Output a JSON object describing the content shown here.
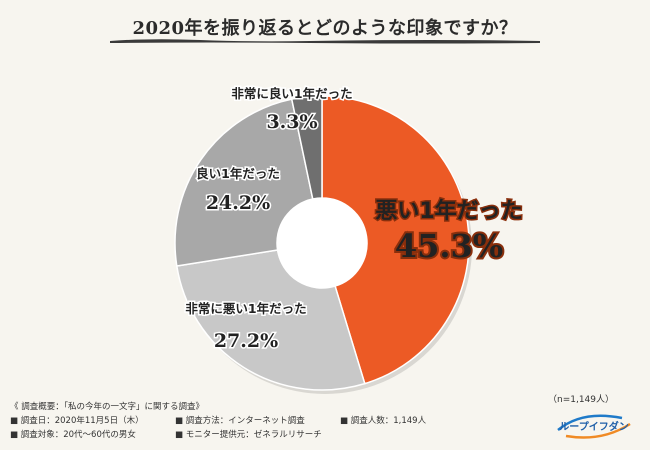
{
  "title": "2020年を振り返るとどのような印象ですか？",
  "chart_data": {
    "type": "pie",
    "donut": true,
    "slices": [
      {
        "label": "悪い1年だった",
        "value": 45.3,
        "value_label": "45.3%",
        "color": "#ec5a25"
      },
      {
        "label": "非常に悪い1年だった",
        "value": 27.2,
        "value_label": "27.2%",
        "color": "#c8c8c8"
      },
      {
        "label": "良い1年だった",
        "value": 24.2,
        "value_label": "24.2%",
        "color": "#a8a8a8"
      },
      {
        "label": "非常に良い1年だった",
        "value": 3.3,
        "value_label": "3.3%",
        "color": "#6f6f6f"
      }
    ]
  },
  "survey": {
    "heading": "《 調査概要：「私の今年の一文字」に関する調査》",
    "date": "調査日：2020年11月5日（木）",
    "method": "調査方法：インターネット調査",
    "count": "調査人数：1,149人",
    "target": "調査対象：20代〜60代の男女",
    "provider": "モニター提供元：ゼネラルリサーチ"
  },
  "sample_size": "（n=1,149人）",
  "logo_text": "ループイフダン"
}
